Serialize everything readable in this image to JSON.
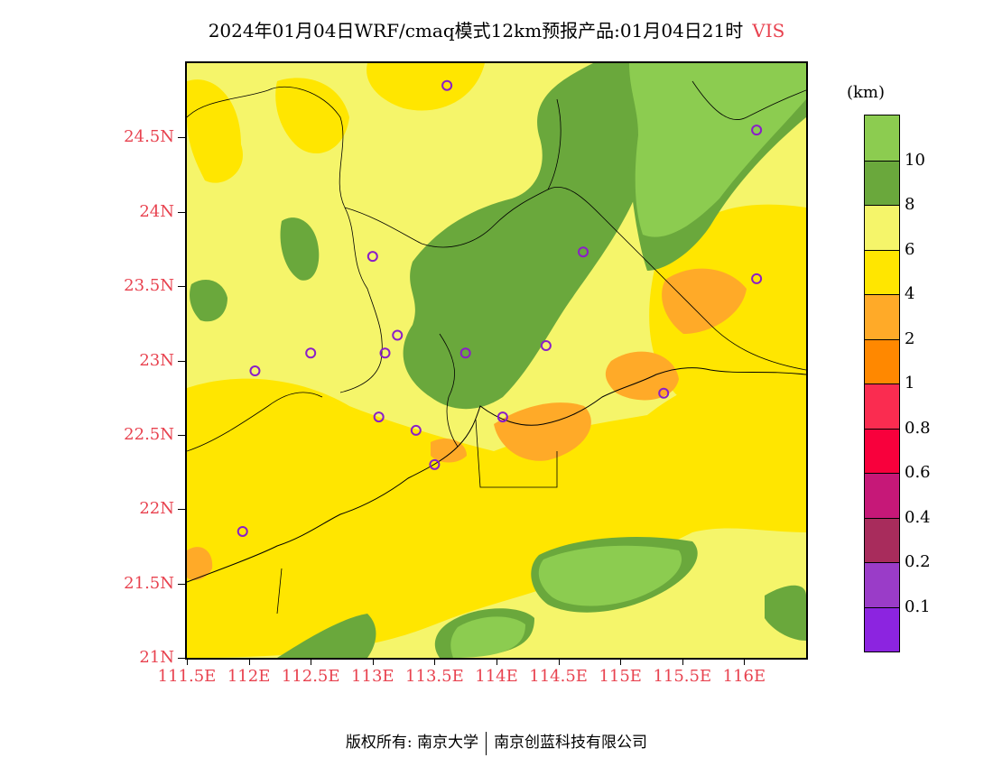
{
  "title": {
    "main": "2024年01月04日WRF/cmaq模式12km预报产品:01月04日21时",
    "variable": "VIS"
  },
  "map": {
    "lon_range": [
      111.5,
      116.5
    ],
    "lat_range": [
      21.0,
      25.0
    ],
    "lat_ticks": [
      {
        "value": 24.5,
        "label": "24.5N"
      },
      {
        "value": 24.0,
        "label": "24N"
      },
      {
        "value": 23.5,
        "label": "23.5N"
      },
      {
        "value": 23.0,
        "label": "23N"
      },
      {
        "value": 22.5,
        "label": "22.5N"
      },
      {
        "value": 22.0,
        "label": "22N"
      },
      {
        "value": 21.5,
        "label": "21.5N"
      },
      {
        "value": 21.0,
        "label": "21N"
      }
    ],
    "lon_ticks": [
      {
        "value": 111.5,
        "label": "111.5E"
      },
      {
        "value": 112.0,
        "label": "112E"
      },
      {
        "value": 112.5,
        "label": "112.5E"
      },
      {
        "value": 113.0,
        "label": "113E"
      },
      {
        "value": 113.5,
        "label": "113.5E"
      },
      {
        "value": 114.0,
        "label": "114E"
      },
      {
        "value": 114.5,
        "label": "114.5E"
      },
      {
        "value": 115.0,
        "label": "115E"
      },
      {
        "value": 115.5,
        "label": "115.5E"
      },
      {
        "value": 116.0,
        "label": "116E"
      }
    ],
    "stations": [
      {
        "lon": 113.6,
        "lat": 24.85
      },
      {
        "lon": 116.1,
        "lat": 24.55
      },
      {
        "lon": 113.0,
        "lat": 23.7
      },
      {
        "lon": 114.7,
        "lat": 23.73
      },
      {
        "lon": 116.1,
        "lat": 23.55
      },
      {
        "lon": 113.2,
        "lat": 23.17
      },
      {
        "lon": 112.5,
        "lat": 23.05
      },
      {
        "lon": 113.1,
        "lat": 23.05
      },
      {
        "lon": 113.75,
        "lat": 23.05
      },
      {
        "lon": 114.4,
        "lat": 23.1
      },
      {
        "lon": 112.05,
        "lat": 22.93
      },
      {
        "lon": 115.35,
        "lat": 22.78
      },
      {
        "lon": 113.05,
        "lat": 22.62
      },
      {
        "lon": 114.05,
        "lat": 22.62
      },
      {
        "lon": 113.35,
        "lat": 22.53
      },
      {
        "lon": 113.5,
        "lat": 22.3
      },
      {
        "lon": 111.95,
        "lat": 21.85
      }
    ]
  },
  "colorbar": {
    "unit": "(km)",
    "segments": [
      {
        "color": "#8c24e0"
      },
      {
        "color": "#9a3cc8"
      },
      {
        "color": "#a82c5c"
      },
      {
        "color": "#c61878"
      },
      {
        "color": "#f8003c"
      },
      {
        "color": "#fa2c50"
      },
      {
        "color": "#ff8800"
      },
      {
        "color": "#ffaa28"
      },
      {
        "color": "#ffe600"
      },
      {
        "color": "#f5f56a"
      },
      {
        "color": "#6aa83c"
      },
      {
        "color": "#8ccc50"
      }
    ],
    "labels": [
      "0.1",
      "0.2",
      "0.4",
      "0.6",
      "0.8",
      "1",
      "2",
      "4",
      "6",
      "8",
      "10"
    ]
  },
  "footer": {
    "left": "版权所有: 南京大学",
    "right": "南京创蓝科技有限公司"
  }
}
